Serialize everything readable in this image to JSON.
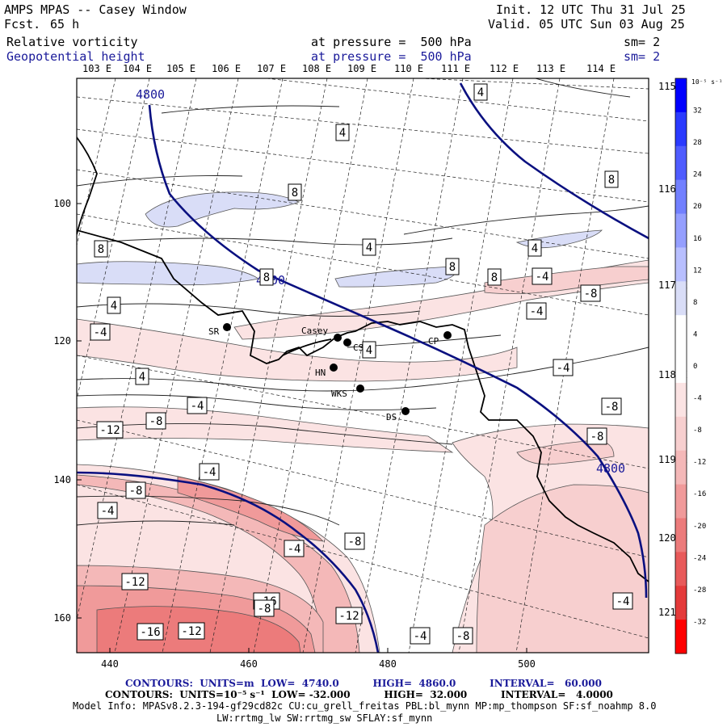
{
  "header": {
    "title": "AMPS MPAS -- Casey Window",
    "fcst_label": "Fcst.",
    "fcst_value": "65 h",
    "init": "Init. 12 UTC Thu 31 Jul 25",
    "valid": "Valid. 05 UTC Sun 03 Aug 25",
    "field1_name": "Relative vorticity",
    "field1_level": "at pressure =  500 hPa",
    "field1_sm": "sm= 2",
    "field2_name": "Geopotential height",
    "field2_level": "at pressure =  500 hPa",
    "field2_sm": "sm= 2"
  },
  "lon_labels_top": [
    "103 E",
    "104 E",
    "105 E",
    "106 E",
    "107 E",
    "108 E",
    "109 E",
    "110 E",
    "111 E",
    "112 E",
    "113 E",
    "114 E"
  ],
  "lon_labels_right": [
    "115 E",
    "116 E",
    "117 E",
    "118 E",
    "119 E",
    "120 E",
    "121 E"
  ],
  "y_ticks": [
    "100",
    "120",
    "140",
    "160"
  ],
  "x_ticks": [
    "440",
    "460",
    "480",
    "500"
  ],
  "stations": [
    {
      "name": "SR"
    },
    {
      "name": "Casey"
    },
    {
      "name": "CS"
    },
    {
      "name": "HN"
    },
    {
      "name": "WKS"
    },
    {
      "name": "DS"
    },
    {
      "name": "CP"
    }
  ],
  "contour_labels": [
    "4800",
    "4800",
    "4800",
    "4",
    "4",
    "8",
    "8",
    "4",
    "8",
    "8",
    "4",
    "8",
    "8",
    "4",
    "4",
    "-4",
    "4",
    "-4",
    "-4",
    "-8",
    "-4",
    "-8",
    "-8",
    "-4",
    "-8",
    "-12",
    "-4",
    "-8",
    "-8",
    "-4",
    "-4",
    "-8",
    "-12",
    "-16",
    "-16",
    "-12",
    "-12",
    "-4",
    "-8",
    "-4",
    "4"
  ],
  "colorbar": {
    "unit": "10⁻⁵ s⁻¹",
    "labels": [
      "32",
      "28",
      "24",
      "20",
      "16",
      "12",
      "8",
      "4",
      "0",
      "-4",
      "-8",
      "-12",
      "-16",
      "-20",
      "-24",
      "-28",
      "-32"
    ],
    "colors": [
      "#0000ff",
      "#2a3aff",
      "#4f5cff",
      "#7280ff",
      "#959fff",
      "#b8bfff",
      "#d9ddf7",
      "#ffffff",
      "#ffffff",
      "#fbe3e3",
      "#f7cfcf",
      "#f4b8b8",
      "#f09a9a",
      "#ec7b7b",
      "#e85a5a",
      "#e43a3a",
      "#ff0000"
    ]
  },
  "footer": {
    "line1_label": "CONTOURS:  UNITS=m  LOW=  4740.0          HIGH=  4860.0          INTERVAL=   60.000",
    "line2_label": "CONTOURS:  UNITS=10⁻⁵ s⁻¹  LOW= -32.000          HIGH=  32.000          INTERVAL=   4.0000",
    "model_info": "Model Info: MPASv8.2.3-194-gf29cd82c CU:cu_grell_freitas PBL:bl_mynn MP:mp_thompson SF:sf_noahmp 8.0",
    "model_info2": "LW:rrtmg_lw SW:rrtmg_sw SFLAY:sf_mynn"
  }
}
